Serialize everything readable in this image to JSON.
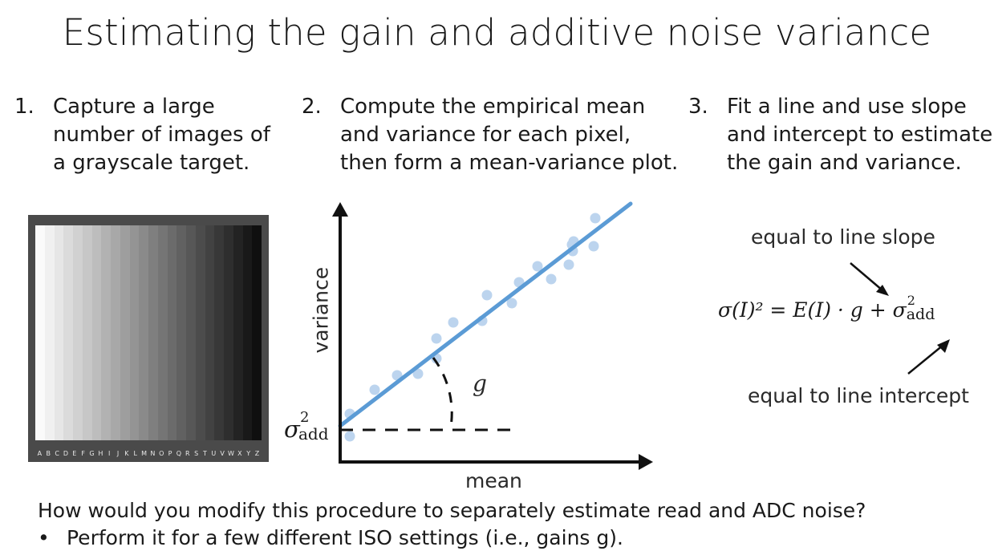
{
  "title": "Estimating the gain and additive noise variance",
  "steps": [
    {
      "number": "1.",
      "text": "Capture a large number of images of a grayscale target."
    },
    {
      "number": "2.",
      "text": "Compute the empirical mean and variance for each pixel, then form a mean-variance plot."
    },
    {
      "number": "3.",
      "text": "Fit a line and use slope and intercept to estimate the gain and variance."
    }
  ],
  "target_letters": [
    "A",
    "B",
    "C",
    "D",
    "E",
    "F",
    "G",
    "H",
    "I",
    "J",
    "K",
    "L",
    "M",
    "N",
    "O",
    "P",
    "Q",
    "R",
    "S",
    "T",
    "U",
    "V",
    "W",
    "X",
    "Y",
    "Z"
  ],
  "plot": {
    "ylabel": "variance",
    "xlabel": "mean",
    "angle_label": "g",
    "intercept_label": {
      "symbol": "σ",
      "sup": "2",
      "sub": "add"
    },
    "line_color": "#5b9bd5",
    "point_color": "#bcd4ee"
  },
  "equation": {
    "top_note": "equal to line slope",
    "bottom_note": "equal to line intercept",
    "formula": "σ(I)² = E(I) · g + σ",
    "formula_sup": "2",
    "formula_sub": "add"
  },
  "question": "How would you modify this procedure to separately estimate read and ADC noise?",
  "bullets": [
    "Perform it for a few different ISO settings (i.e., gains g)."
  ]
}
